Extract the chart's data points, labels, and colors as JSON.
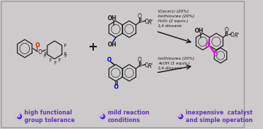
{
  "bg_color": "#cccaca",
  "border_color": "#999999",
  "sc": "#1a1a1a",
  "red": "#cc2200",
  "blue": "#0000bb",
  "purple": "#8833bb",
  "magenta": "#cc22cc",
  "footer_color": "#6633bb",
  "footer_items": [
    {
      "text": "high functional\ngroup tolerance"
    },
    {
      "text": "mild reaction\nconditions"
    },
    {
      "text": "inexpensive  catalyst\nand simple operation"
    }
  ],
  "cond_top": "V(acac)₂ (20%)\nIsothiourea (20%)\nH₂O₂ (2 equiv.)\n1,4-dioxane",
  "cond_bot": "Isothiourea (20%)\nAcOH (1 equiv.)\n1,4-dioxane"
}
